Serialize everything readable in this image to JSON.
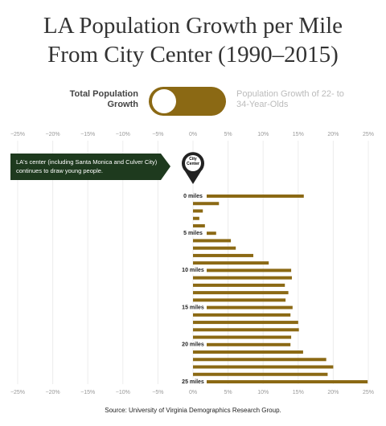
{
  "chart_data": {
    "type": "barh",
    "title": "LA Population Growth per Mile From City Center (1990–2015)",
    "annotation": "LA's center (including Santa Monica and Culver City) continues to draw young people.",
    "marker_label": "City Center",
    "source": "Source: University of Virginia Demographics Research Group.",
    "categories": [
      "0 miles",
      null,
      null,
      null,
      null,
      "5 miles",
      null,
      null,
      null,
      null,
      "10 miles",
      null,
      null,
      null,
      null,
      "15 miles",
      null,
      null,
      null,
      null,
      "20 miles",
      null,
      null,
      null,
      null,
      "25 miles"
    ],
    "values": [
      15.8,
      3.7,
      1.4,
      0.9,
      1.7,
      3.3,
      5.4,
      6.1,
      8.6,
      10.8,
      14.0,
      14.1,
      13.1,
      13.6,
      13.2,
      14.2,
      13.9,
      15.0,
      15.1,
      14.0,
      13.9,
      15.7,
      19.0,
      20.0,
      19.2,
      24.9
    ],
    "color": "#8b6914",
    "xlim": [
      -25,
      25
    ],
    "xticks": [
      {
        "value": -25,
        "label": "−25%"
      },
      {
        "value": -20,
        "label": "−20%"
      },
      {
        "value": -15,
        "label": "−15%"
      },
      {
        "value": -10,
        "label": "−10%"
      },
      {
        "value": -5,
        "label": "−5%"
      },
      {
        "value": 0,
        "label": "0%"
      },
      {
        "value": 5,
        "label": "5%"
      },
      {
        "value": 10,
        "label": "10%"
      },
      {
        "value": 15,
        "label": "15%"
      },
      {
        "value": 20,
        "label": "20%"
      },
      {
        "value": 25,
        "label": "25%"
      }
    ],
    "grid": true
  },
  "toggle": {
    "left_label": "Total Population Growth",
    "right_label": "Population Growth of 22- to 34-Year-Olds"
  }
}
